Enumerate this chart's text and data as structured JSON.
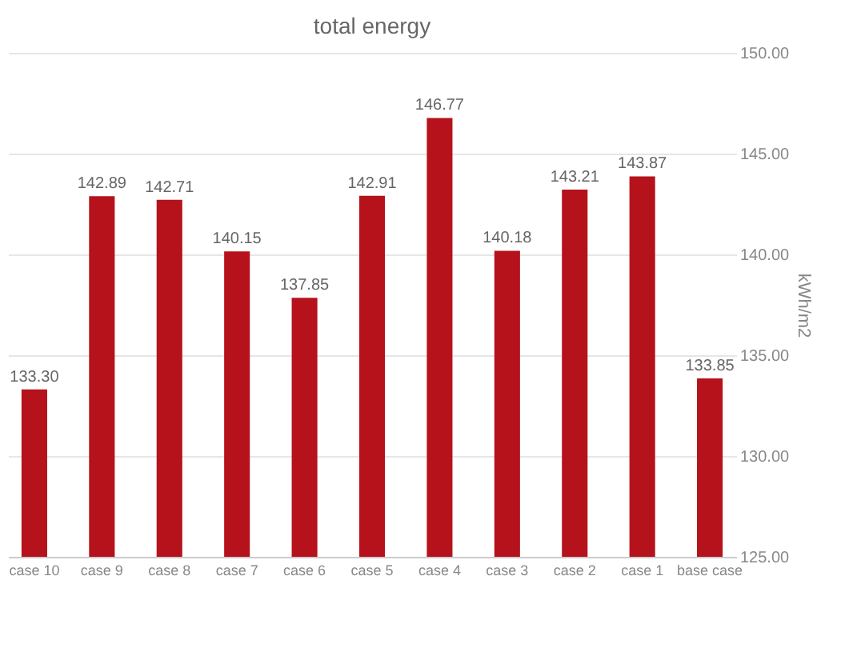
{
  "chart_data": {
    "type": "bar",
    "title": "total energy",
    "y2label": "kWh/m2",
    "categories": [
      "case 10",
      "case 9",
      "case 8",
      "case 7",
      "case 6",
      "case 5",
      "case 4",
      "case 3",
      "case 2",
      "case 1",
      "base case"
    ],
    "series": [
      {
        "color": "#b5121b",
        "axis": "y2",
        "values": [
          133.3,
          142.89,
          142.71,
          140.15,
          137.85,
          142.91,
          146.77,
          140.18,
          143.21,
          143.87,
          133.85
        ],
        "value_labels": [
          "133.30",
          "142.89",
          "142.71",
          "140.15",
          "137.85",
          "142.91",
          "146.77",
          "140.18",
          "143.21",
          "143.87",
          "133.85"
        ]
      }
    ],
    "y2lim": [
      125,
      150
    ],
    "y2ticks": [
      {
        "value": 125,
        "label": "125.00"
      },
      {
        "value": 130,
        "label": "130.00"
      },
      {
        "value": 135,
        "label": "135.00"
      },
      {
        "value": 140,
        "label": "140.00"
      },
      {
        "value": 145,
        "label": "145.00"
      },
      {
        "value": 150,
        "label": "150.00"
      }
    ],
    "grid": "y"
  }
}
